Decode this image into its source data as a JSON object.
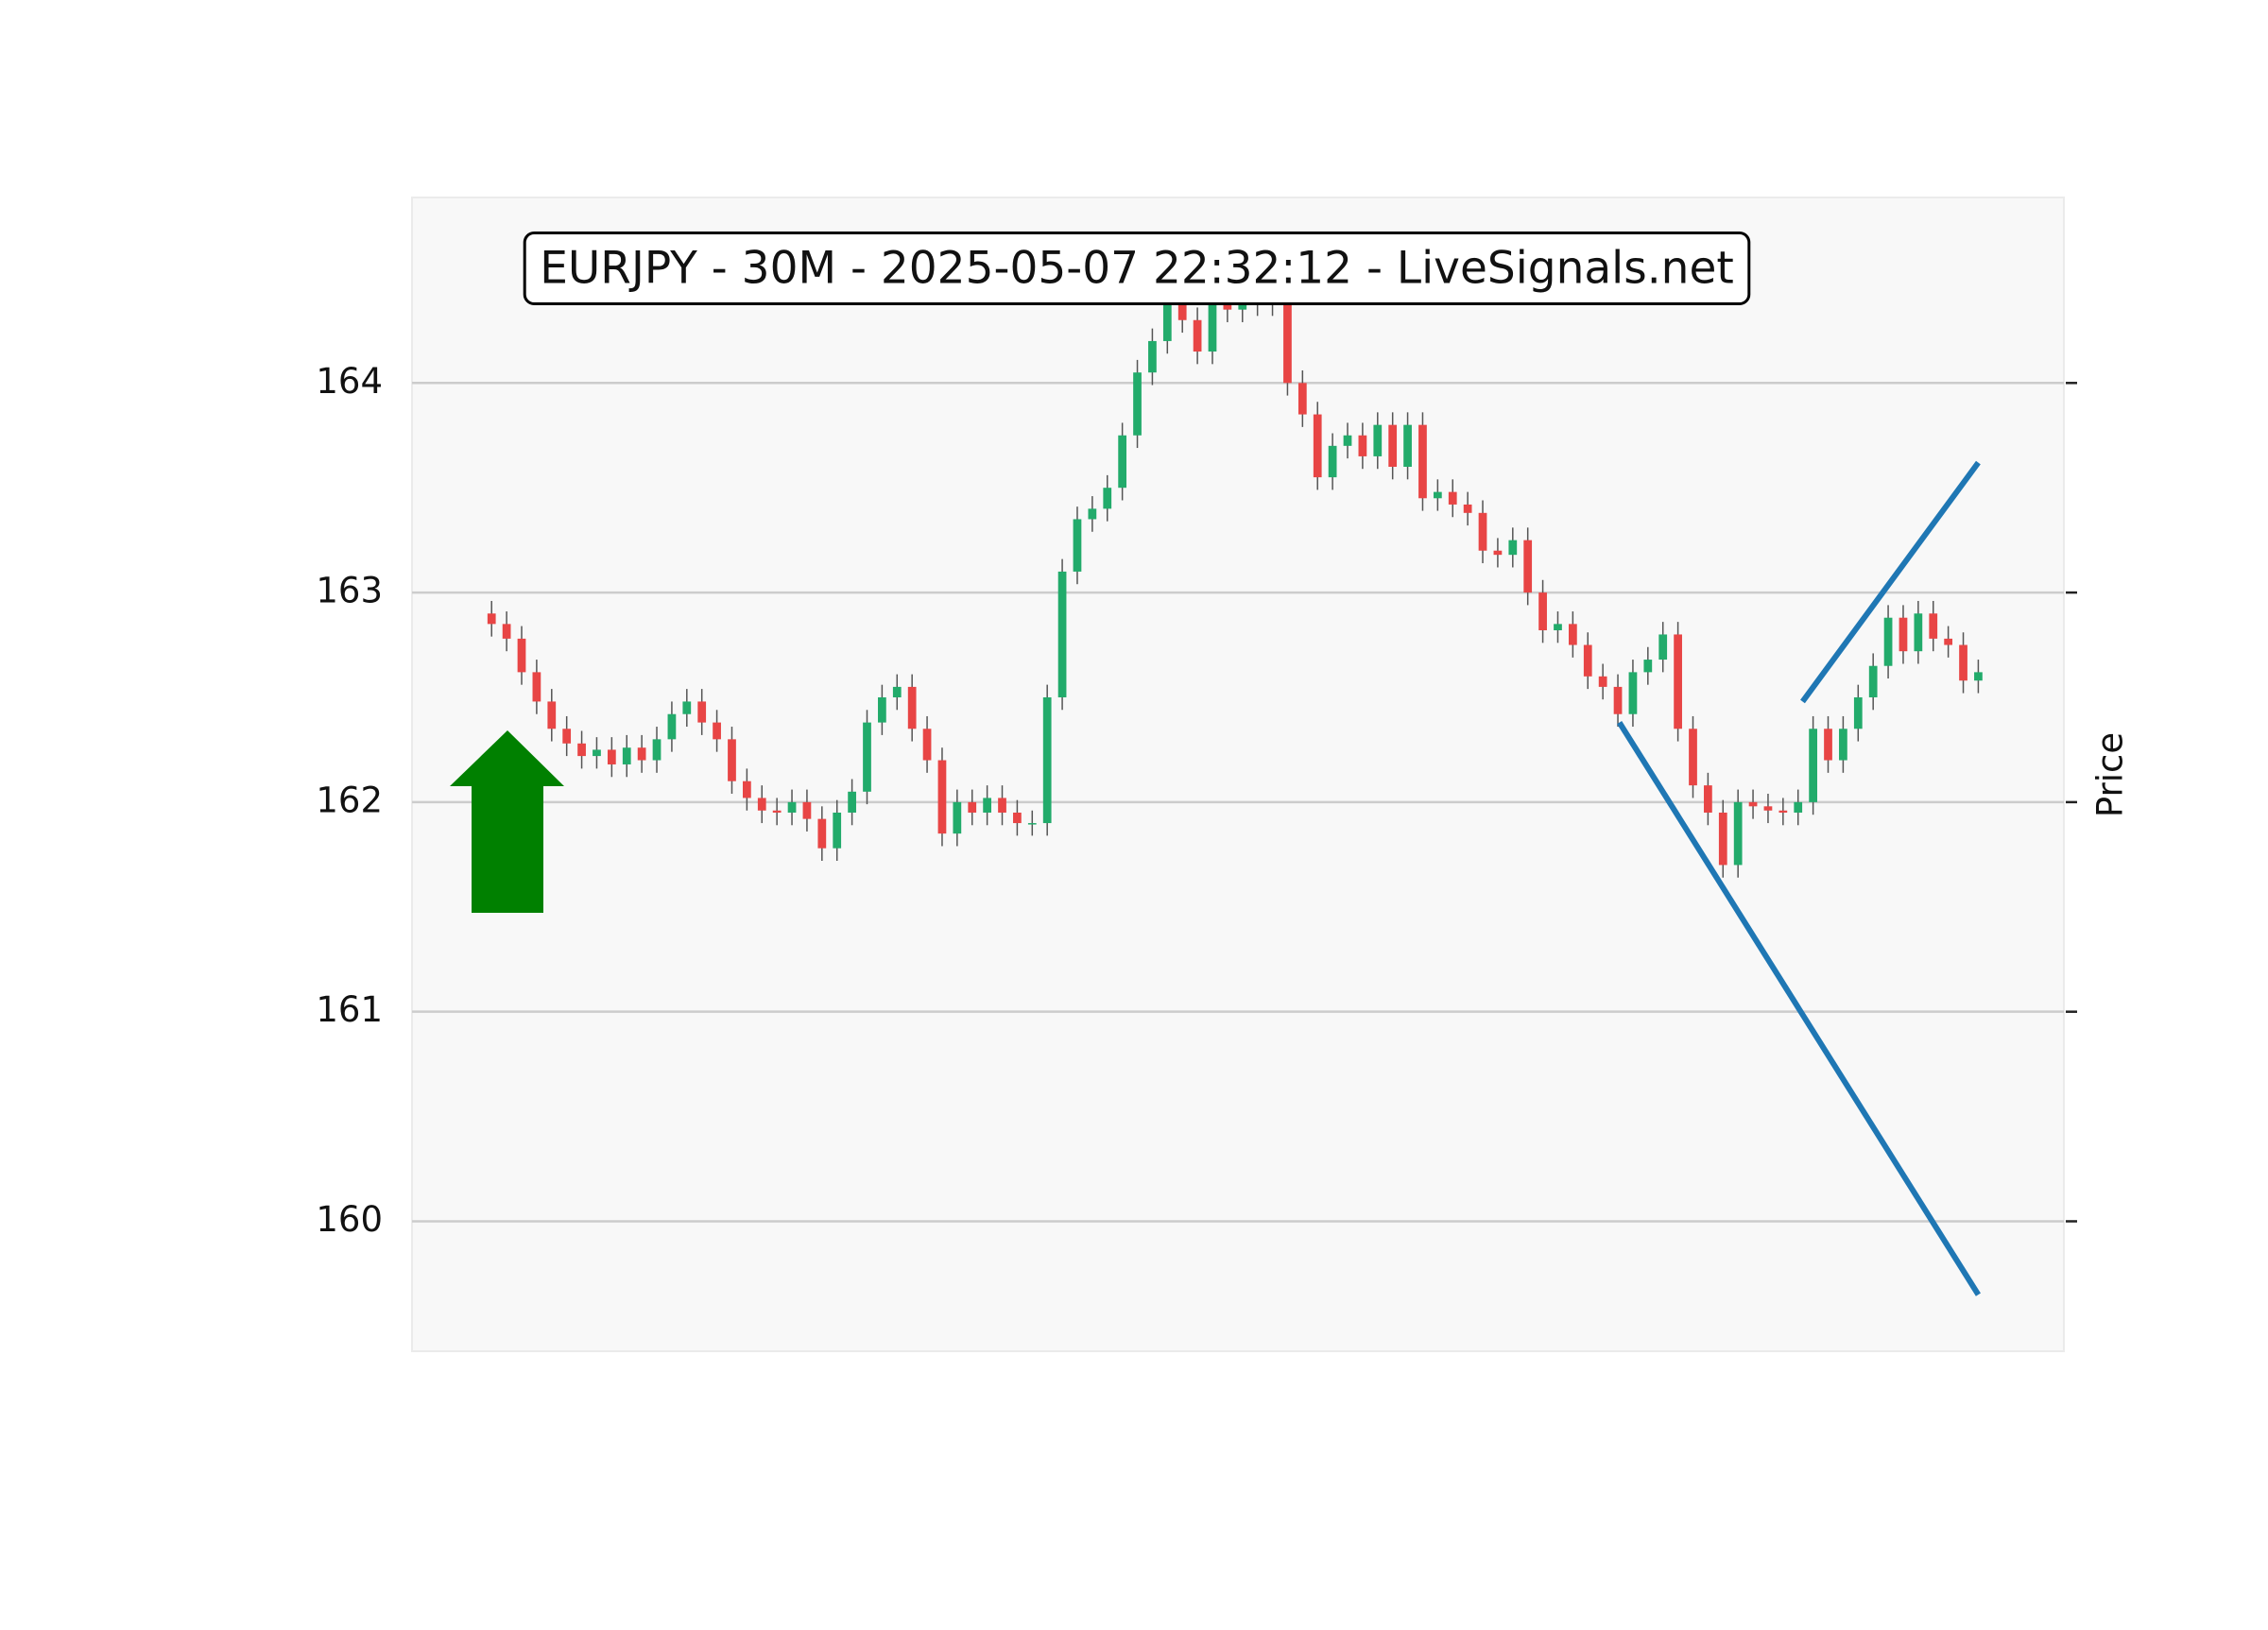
{
  "chart_data": {
    "type": "candlestick",
    "title": "EURJPY - 30M - 2025-05-07 22:32:12 - LiveSignals.net",
    "y_label": "Price",
    "xlim": [
      -5.3,
      104.7
    ],
    "ylim": [
      159.38,
      164.885
    ],
    "yticks": [
      160,
      161,
      162,
      163,
      164
    ],
    "grid": true,
    "up_color": "#22ab6b",
    "down_color": "#e84545",
    "open": [
      162.9,
      162.85,
      162.78,
      162.62,
      162.48,
      162.35,
      162.28,
      162.22,
      162.25,
      162.18,
      162.26,
      162.2,
      162.3,
      162.42,
      162.48,
      162.38,
      162.3,
      162.1,
      162.02,
      161.96,
      161.95,
      162.0,
      161.92,
      161.78,
      161.95,
      162.05,
      162.38,
      162.5,
      162.55,
      162.35,
      162.2,
      161.85,
      162.0,
      161.95,
      162.02,
      161.95,
      161.9,
      161.9,
      162.5,
      163.1,
      163.35,
      163.4,
      163.5,
      163.75,
      164.05,
      164.2,
      164.45,
      164.3,
      164.15,
      164.45,
      164.35,
      164.4,
      164.38,
      164.4,
      164.0,
      163.85,
      163.55,
      163.7,
      163.75,
      163.65,
      163.8,
      163.6,
      163.8,
      163.45,
      163.48,
      163.42,
      163.38,
      163.2,
      163.18,
      163.25,
      163.0,
      162.82,
      162.85,
      162.75,
      162.6,
      162.55,
      162.42,
      162.62,
      162.68,
      162.8,
      162.35,
      162.08,
      161.95,
      161.7,
      162.0,
      161.98,
      161.96,
      161.95,
      162.0,
      162.35,
      162.2,
      162.35,
      162.5,
      162.65,
      162.88,
      162.72,
      162.9,
      162.78,
      162.75,
      162.58
    ],
    "high": [
      162.96,
      162.91,
      162.84,
      162.68,
      162.54,
      162.41,
      162.34,
      162.31,
      162.31,
      162.32,
      162.32,
      162.36,
      162.48,
      162.54,
      162.54,
      162.44,
      162.36,
      162.16,
      162.08,
      162.02,
      162.06,
      162.06,
      161.98,
      162.01,
      162.11,
      162.44,
      162.56,
      162.61,
      162.61,
      162.41,
      162.26,
      162.06,
      162.06,
      162.08,
      162.08,
      162.01,
      161.96,
      162.56,
      163.16,
      163.41,
      163.46,
      163.56,
      163.81,
      164.11,
      164.26,
      164.51,
      164.51,
      164.36,
      164.51,
      164.51,
      164.46,
      164.46,
      164.46,
      164.46,
      164.06,
      163.91,
      163.76,
      163.81,
      163.81,
      163.86,
      163.86,
      163.86,
      163.86,
      163.54,
      163.54,
      163.48,
      163.44,
      163.26,
      163.31,
      163.31,
      163.06,
      162.91,
      162.91,
      162.81,
      162.66,
      162.61,
      162.68,
      162.74,
      162.86,
      162.86,
      162.41,
      162.14,
      162.01,
      162.06,
      162.06,
      162.04,
      162.02,
      162.06,
      162.41,
      162.41,
      162.41,
      162.56,
      162.71,
      162.94,
      162.94,
      162.96,
      162.96,
      162.84,
      162.81,
      162.68
    ],
    "low": [
      162.79,
      162.72,
      162.56,
      162.42,
      162.29,
      162.22,
      162.16,
      162.16,
      162.12,
      162.12,
      162.14,
      162.14,
      162.24,
      162.36,
      162.32,
      162.24,
      162.04,
      161.96,
      161.9,
      161.89,
      161.89,
      161.86,
      161.72,
      161.72,
      161.89,
      161.99,
      162.32,
      162.44,
      162.29,
      162.14,
      161.79,
      161.79,
      161.89,
      161.89,
      161.89,
      161.84,
      161.84,
      161.84,
      162.44,
      163.04,
      163.29,
      163.34,
      163.44,
      163.69,
      163.99,
      164.14,
      164.24,
      164.09,
      164.09,
      164.29,
      164.29,
      164.32,
      164.32,
      163.94,
      163.79,
      163.49,
      163.49,
      163.64,
      163.59,
      163.59,
      163.54,
      163.54,
      163.39,
      163.39,
      163.36,
      163.32,
      163.14,
      163.12,
      163.12,
      162.94,
      162.76,
      162.76,
      162.69,
      162.54,
      162.49,
      162.36,
      162.36,
      162.56,
      162.62,
      162.29,
      162.02,
      161.89,
      161.64,
      161.64,
      161.92,
      161.9,
      161.89,
      161.89,
      161.94,
      162.14,
      162.14,
      162.29,
      162.44,
      162.59,
      162.66,
      162.66,
      162.72,
      162.69,
      162.52,
      162.52
    ],
    "close": [
      162.85,
      162.78,
      162.62,
      162.48,
      162.35,
      162.28,
      162.22,
      162.25,
      162.18,
      162.26,
      162.2,
      162.3,
      162.42,
      162.48,
      162.38,
      162.3,
      162.1,
      162.02,
      161.96,
      161.95,
      162.0,
      161.92,
      161.78,
      161.95,
      162.05,
      162.38,
      162.5,
      162.55,
      162.35,
      162.2,
      161.85,
      162.0,
      161.95,
      162.02,
      161.95,
      161.9,
      161.9,
      162.5,
      163.1,
      163.35,
      163.4,
      163.5,
      163.75,
      164.05,
      164.2,
      164.45,
      164.3,
      164.15,
      164.45,
      164.35,
      164.4,
      164.38,
      164.4,
      164.0,
      163.85,
      163.55,
      163.7,
      163.75,
      163.65,
      163.8,
      163.6,
      163.8,
      163.45,
      163.48,
      163.42,
      163.38,
      163.2,
      163.18,
      163.25,
      163.0,
      162.82,
      162.85,
      162.75,
      162.6,
      162.55,
      162.42,
      162.62,
      162.68,
      162.8,
      162.35,
      162.08,
      161.95,
      161.7,
      162.0,
      161.98,
      161.96,
      161.95,
      162.0,
      162.35,
      162.2,
      162.35,
      162.5,
      162.65,
      162.88,
      162.72,
      162.9,
      162.78,
      162.75,
      162.58,
      162.62
    ],
    "trendlines": [
      {
        "color": "#1f77b4",
        "x": [
          75.1,
          99
        ],
        "y": [
          162.38,
          159.65
        ]
      },
      {
        "color": "#1f77b4",
        "x": [
          87.3,
          99
        ],
        "y": [
          162.48,
          163.62
        ]
      }
    ],
    "signal_color": "#008000"
  }
}
